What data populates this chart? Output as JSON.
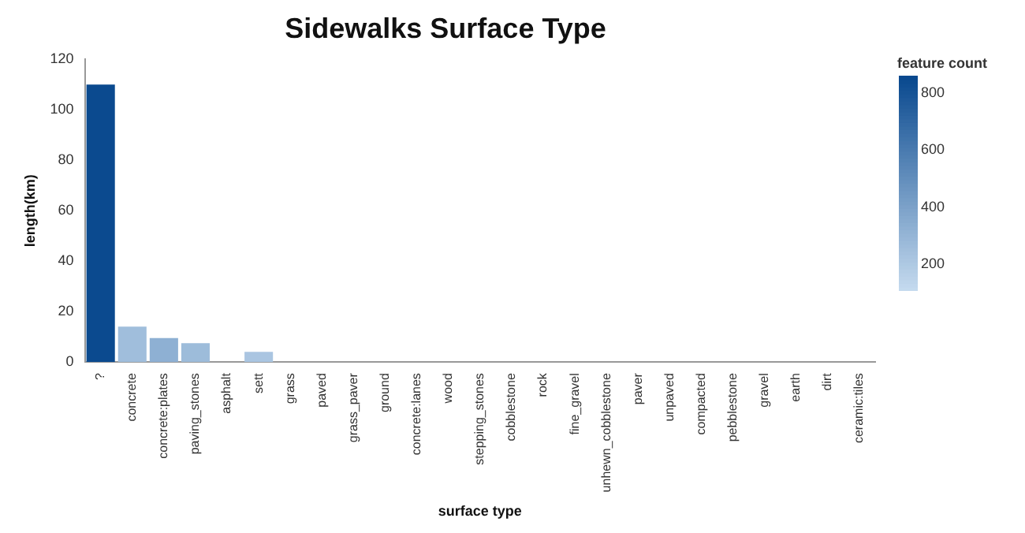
{
  "chart_data": {
    "type": "bar",
    "title": "Sidewalks Surface Type",
    "xlabel": "surface type",
    "ylabel": "length(km)",
    "clabel": "feature count",
    "categories": [
      "?",
      "concrete",
      "concrete:plates",
      "paving_stones",
      "asphalt",
      "sett",
      "grass",
      "paved",
      "grass_paver",
      "ground",
      "concrete:lanes",
      "wood",
      "stepping_stones",
      "cobblestone",
      "rock",
      "fine_gravel",
      "unhewn_cobblestone",
      "paver",
      "unpaved",
      "compacted",
      "pebblestone",
      "gravel",
      "earth",
      "dirt",
      "ceramic:tiles"
    ],
    "values": [
      110,
      14,
      9.5,
      7.5,
      0,
      4,
      0,
      0,
      0,
      0,
      0,
      0,
      0,
      0,
      0,
      0,
      0,
      0,
      0,
      0,
      0,
      0,
      0,
      0,
      0
    ],
    "cvalues": [
      850,
      260,
      330,
      270,
      null,
      220,
      null,
      null,
      null,
      null,
      null,
      null,
      null,
      null,
      null,
      null,
      null,
      null,
      null,
      null,
      null,
      null,
      null,
      null,
      null
    ],
    "clim": [
      110,
      860
    ],
    "cticks": [
      200,
      400,
      600,
      800
    ],
    "ylim": [
      0,
      120
    ],
    "yticks": [
      0,
      20,
      40,
      60,
      80,
      100,
      120
    ],
    "grid": false,
    "legend": false
  }
}
